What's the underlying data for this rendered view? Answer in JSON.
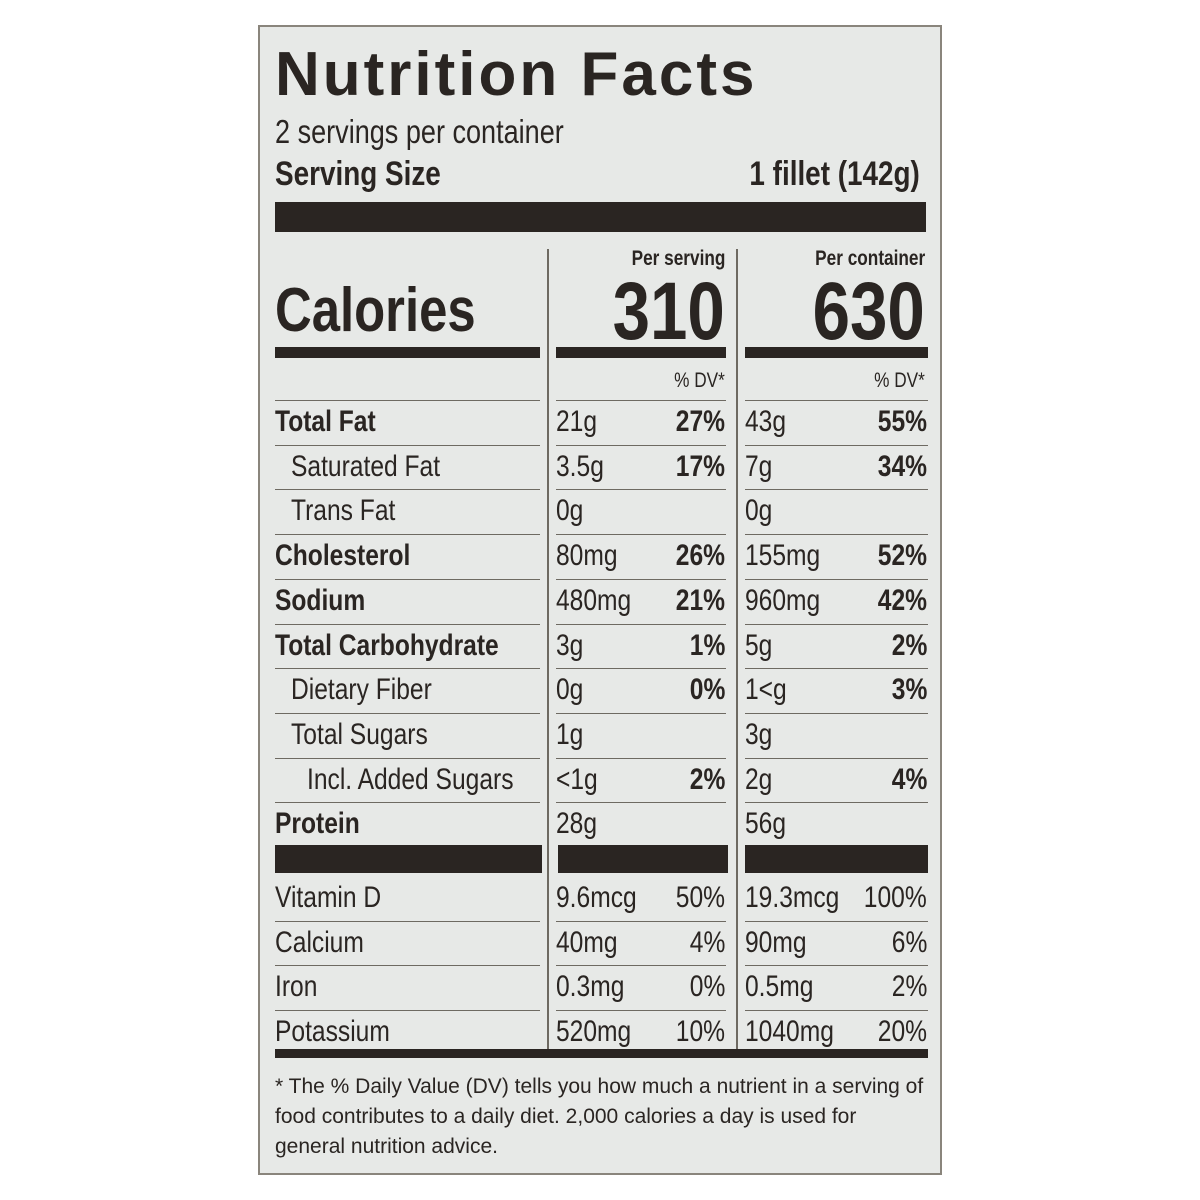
{
  "title": "Nutrition Facts",
  "servings_per_container": "2 servings per container",
  "serving_size_label": "Serving Size",
  "serving_size_value": "1 fillet (142g)",
  "calories_label": "Calories",
  "columns": [
    {
      "header": "Per serving",
      "calories": "310",
      "dv_label": "% DV*"
    },
    {
      "header": "Per container",
      "calories": "630",
      "dv_label": "% DV*"
    }
  ],
  "nutrients": [
    {
      "name": "Total Fat",
      "bold": true,
      "indent": 0,
      "serving": "21g",
      "serving_dv": "27%",
      "container": "43g",
      "container_dv": "55%"
    },
    {
      "name": "Saturated Fat",
      "bold": false,
      "indent": 1,
      "serving": "3.5g",
      "serving_dv": "17%",
      "container": "7g",
      "container_dv": "34%"
    },
    {
      "name": "Trans Fat",
      "bold": false,
      "indent": 1,
      "serving": "0g",
      "serving_dv": "",
      "container": "0g",
      "container_dv": ""
    },
    {
      "name": "Cholesterol",
      "bold": true,
      "indent": 0,
      "serving": "80mg",
      "serving_dv": "26%",
      "container": "155mg",
      "container_dv": "52%"
    },
    {
      "name": "Sodium",
      "bold": true,
      "indent": 0,
      "serving": "480mg",
      "serving_dv": "21%",
      "container": "960mg",
      "container_dv": "42%"
    },
    {
      "name": "Total Carbohydrate",
      "bold": true,
      "indent": 0,
      "serving": "3g",
      "serving_dv": "1%",
      "container": "5g",
      "container_dv": "2%"
    },
    {
      "name": "Dietary Fiber",
      "bold": false,
      "indent": 1,
      "serving": "0g",
      "serving_dv": "0%",
      "container": "1<g",
      "container_dv": "3%"
    },
    {
      "name": "Total Sugars",
      "bold": false,
      "indent": 1,
      "serving": "1g",
      "serving_dv": "",
      "container": "3g",
      "container_dv": ""
    },
    {
      "name": "Incl. Added Sugars",
      "bold": false,
      "indent": 2,
      "serving": "<1g",
      "serving_dv": "2%",
      "container": "2g",
      "container_dv": "4%"
    },
    {
      "name": "Protein",
      "bold": true,
      "indent": 0,
      "serving": "28g",
      "serving_dv": "",
      "container": "56g",
      "container_dv": ""
    }
  ],
  "vitamins": [
    {
      "name": "Vitamin D",
      "serving": "9.6mcg",
      "serving_dv": "50%",
      "container": "19.3mcg",
      "container_dv": "100%"
    },
    {
      "name": "Calcium",
      "serving": "40mg",
      "serving_dv": "4%",
      "container": "90mg",
      "container_dv": "6%"
    },
    {
      "name": "Iron",
      "serving": "0.3mg",
      "serving_dv": "0%",
      "container": "0.5mg",
      "container_dv": "2%"
    },
    {
      "name": "Potassium",
      "serving": "520mg",
      "serving_dv": "10%",
      "container": "1040mg",
      "container_dv": "20%"
    }
  ],
  "footnote": "* The % Daily Value (DV) tells you how much a nutrient in a serving of food contributes to a daily diet. 2,000 calories a day is used for general nutrition advice."
}
